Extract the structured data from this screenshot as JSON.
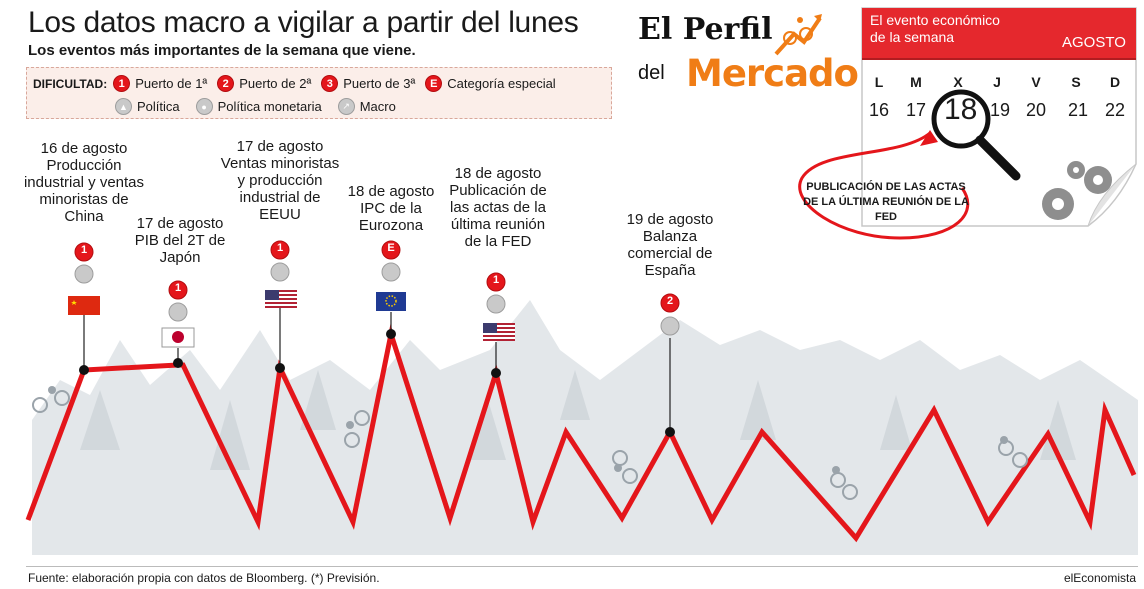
{
  "header": {
    "title": "Los datos macro a vigilar a partir del lunes",
    "subtitle": "Los eventos más importantes de la semana que viene."
  },
  "legend": {
    "label": "DIFICULTAD:",
    "items": [
      {
        "mark": "1",
        "text": "Puerto de 1ª"
      },
      {
        "mark": "2",
        "text": "Puerto de 2ª"
      },
      {
        "mark": "3",
        "text": "Puerto de 3ª"
      },
      {
        "mark": "E",
        "text": "Categoría especial"
      },
      {
        "mark": "politica-icon",
        "text": "Política"
      },
      {
        "mark": "politica-monetaria-icon",
        "text": "Política monetaria"
      },
      {
        "mark": "macro-icon",
        "text": "Macro"
      }
    ]
  },
  "logo": {
    "line1": "El Perfil",
    "line2": "del",
    "line3": "Mercado"
  },
  "calendar": {
    "header": [
      "El evento económico",
      "de la semana"
    ],
    "month": "AGOSTO",
    "days": [
      {
        "letter": "L",
        "num": "16"
      },
      {
        "letter": "M",
        "num": "17"
      },
      {
        "letter": "X",
        "num": "18"
      },
      {
        "letter": "J",
        "num": "19"
      },
      {
        "letter": "V",
        "num": "20"
      },
      {
        "letter": "S",
        "num": "21"
      },
      {
        "letter": "D",
        "num": "22"
      }
    ],
    "highlight": "18",
    "note": "PUBLICACIÓN DE LAS ACTAS DE LA ÚLTIMA REUNIÓN DE LA FED"
  },
  "events": [
    {
      "lines": [
        "16 de agosto",
        "Producción",
        "industrial y ventas",
        "minoristas de",
        "China"
      ],
      "badge": "1",
      "flag": "china-flag"
    },
    {
      "lines": [
        "17 de agosto",
        "PIB del 2T de",
        "Japón"
      ],
      "badge": "1",
      "flag": "japan-flag"
    },
    {
      "lines": [
        "17 de agosto",
        "Ventas minoristas",
        "y producción",
        "industrial de",
        "EEUU"
      ],
      "badge": "1",
      "flag": "usa-flag"
    },
    {
      "lines": [
        "18 de agosto",
        "IPC de la",
        "Eurozona"
      ],
      "badge": "E",
      "flag": "eu-flag"
    },
    {
      "lines": [
        "18 de agosto",
        "Publicación de",
        "las actas de la",
        "última reunión",
        "de la FED"
      ],
      "badge": "1",
      "flag": "usa-flag"
    },
    {
      "lines": [
        "19 de agosto",
        "Balanza",
        "comercial de",
        "España"
      ],
      "badge": "2",
      "flag": ""
    }
  ],
  "footer": {
    "source": "Fuente: elaboración propia con datos de Bloomberg. (*) Previsión.",
    "brand": "elEconomista"
  },
  "colors": {
    "red": "#e4161b",
    "orange": "#f07d16",
    "mountain": "#dfe3e6"
  }
}
